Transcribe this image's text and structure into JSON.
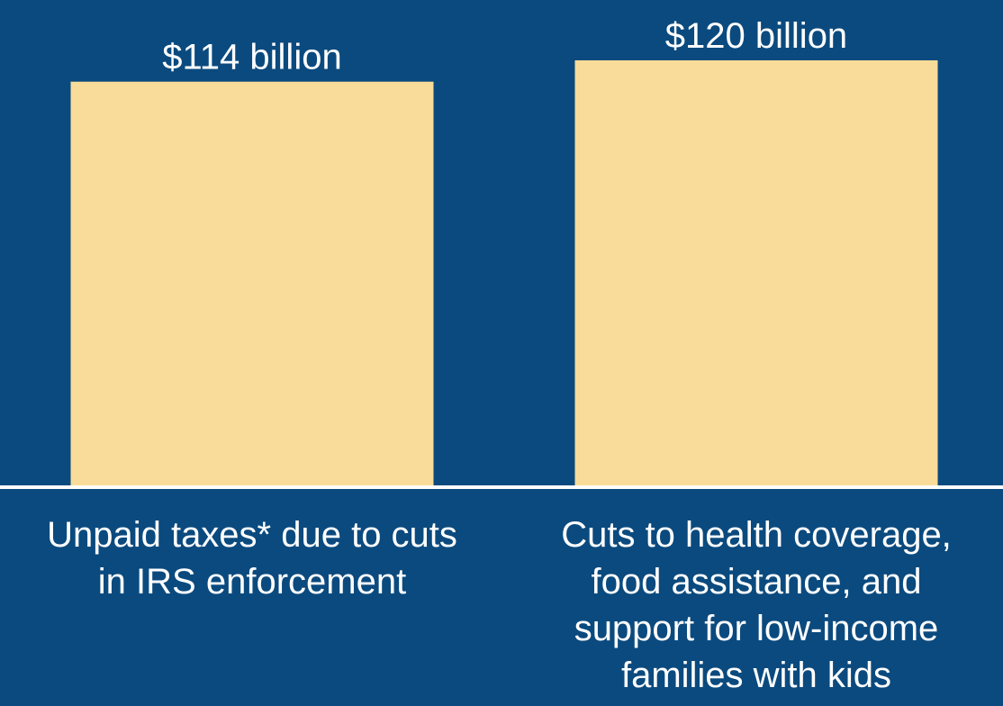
{
  "chart_data": {
    "type": "bar",
    "title": "",
    "xlabel": "",
    "ylabel": "",
    "unit": "billion dollars",
    "categories": [
      "Unpaid taxes* due to cuts in IRS enforcement",
      "Cuts to health coverage, food assistance, and support for low-income families with kids"
    ],
    "category_lines": [
      [
        "Unpaid taxes* due to cuts",
        "in IRS enforcement"
      ],
      [
        "Cuts to health coverage,",
        "food assistance, and",
        "support for low-income",
        "families with kids"
      ]
    ],
    "values": [
      114,
      120
    ],
    "value_labels": [
      "$114 billion",
      "$120 billion"
    ],
    "ylim": [
      0,
      120
    ],
    "grid": false,
    "legend": "none",
    "colors": {
      "background": "#0b4a7e",
      "bar": "#f9dc99",
      "text": "#ffffff",
      "axis": "#ffffff"
    }
  }
}
